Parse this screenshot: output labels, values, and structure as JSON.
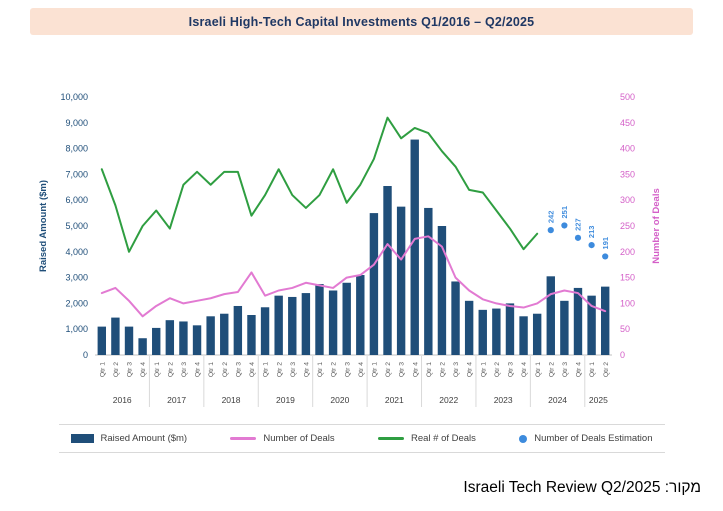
{
  "title": "Israeli High-Tech Capital Investments Q1/2016 – Q2/2025",
  "banner_bg": "#fbe2d3",
  "source_note": "מקור: Israeli Tech Review Q2/2025",
  "legend": [
    {
      "label": "Raised Amount ($m)",
      "swatch": "bar",
      "color": "#1f4e79"
    },
    {
      "label": "Number of Deals",
      "swatch": "line",
      "color": "#e27ad2"
    },
    {
      "label": "Real # of Deals",
      "swatch": "line",
      "color": "#2f9e41"
    },
    {
      "label": "Number of Deals Estimation",
      "swatch": "dot",
      "color": "#3d8bdd"
    }
  ],
  "chart_data": {
    "type": "combo-bar-line",
    "title": "Israeli High-Tech Capital Investments Q1/2016 – Q2/2025",
    "grid": false,
    "legend_position": "bottom",
    "left_axis": {
      "label": "Raised Amount ($m)",
      "min": 0,
      "max": 10000,
      "step": 1000,
      "color": "#1f4e79"
    },
    "right_axis": {
      "label": "Number of Deals",
      "min": 0,
      "max": 500,
      "step": 50,
      "color": "#d45fc8"
    },
    "quarters": [
      "Qtr 1",
      "Qtr 2",
      "Qtr 3",
      "Qtr 4",
      "Qtr 1",
      "Qtr 2",
      "Qtr 3",
      "Qtr 4",
      "Qtr 1",
      "Qtr 2",
      "Qtr 3",
      "Qtr 4",
      "Qtr 1",
      "Qtr 2",
      "Qtr 3",
      "Qtr 4",
      "Qtr 1",
      "Qtr 2",
      "Qtr 3",
      "Qtr 4",
      "Qtr 1",
      "Qtr 2",
      "Qtr 3",
      "Qtr 4",
      "Qtr 1",
      "Qtr 2",
      "Qtr 3",
      "Qtr 4",
      "Qtr 1",
      "Qtr 2",
      "Qtr 3",
      "Qtr 4",
      "Qtr 1",
      "Qtr 2",
      "Qtr 3",
      "Qtr 4",
      "Qtr 1",
      "Qtr 2"
    ],
    "years": [
      {
        "label": "2016",
        "quarters": 4
      },
      {
        "label": "2017",
        "quarters": 4
      },
      {
        "label": "2018",
        "quarters": 4
      },
      {
        "label": "2019",
        "quarters": 4
      },
      {
        "label": "2020",
        "quarters": 4
      },
      {
        "label": "2021",
        "quarters": 4
      },
      {
        "label": "2022",
        "quarters": 4
      },
      {
        "label": "2023",
        "quarters": 4
      },
      {
        "label": "2024",
        "quarters": 4
      },
      {
        "label": "2025",
        "quarters": 2
      }
    ],
    "series": [
      {
        "name": "Raised Amount ($m)",
        "type": "bar",
        "axis": "left",
        "color": "#1f4e79",
        "values": [
          1100,
          1450,
          1100,
          650,
          1050,
          1350,
          1300,
          1150,
          1500,
          1600,
          1900,
          1550,
          1850,
          2300,
          2250,
          2400,
          2750,
          2500,
          2800,
          3100,
          5500,
          6550,
          5750,
          8350,
          5700,
          5000,
          2850,
          2100,
          1750,
          1800,
          2000,
          1500,
          1600,
          3050,
          2100,
          2600,
          2300,
          2650
        ]
      },
      {
        "name": "Number of Deals",
        "type": "line",
        "axis": "right",
        "color": "#e27ad2",
        "values": [
          120,
          130,
          105,
          75,
          95,
          110,
          100,
          105,
          110,
          118,
          122,
          160,
          115,
          125,
          130,
          140,
          135,
          130,
          150,
          155,
          175,
          215,
          185,
          225,
          230,
          210,
          150,
          125,
          108,
          100,
          95,
          92,
          100,
          118,
          125,
          120,
          95,
          85
        ]
      },
      {
        "name": "Real # of Deals",
        "type": "line",
        "axis": "right",
        "color": "#2f9e41",
        "values": [
          360,
          290,
          200,
          250,
          280,
          245,
          330,
          355,
          330,
          355,
          355,
          270,
          310,
          360,
          310,
          285,
          310,
          360,
          295,
          330,
          380,
          460,
          420,
          440,
          430,
          395,
          365,
          320,
          315,
          280,
          245,
          205,
          235,
          null,
          null,
          null,
          null,
          null
        ]
      },
      {
        "name": "Number of Deals Estimation",
        "type": "scatter",
        "axis": "right",
        "color": "#3d8bdd",
        "data_labels": true,
        "values": [
          null,
          null,
          null,
          null,
          null,
          null,
          null,
          null,
          null,
          null,
          null,
          null,
          null,
          null,
          null,
          null,
          null,
          null,
          null,
          null,
          null,
          null,
          null,
          null,
          null,
          null,
          null,
          null,
          null,
          null,
          null,
          null,
          null,
          242,
          251,
          227,
          213,
          191
        ]
      }
    ]
  }
}
